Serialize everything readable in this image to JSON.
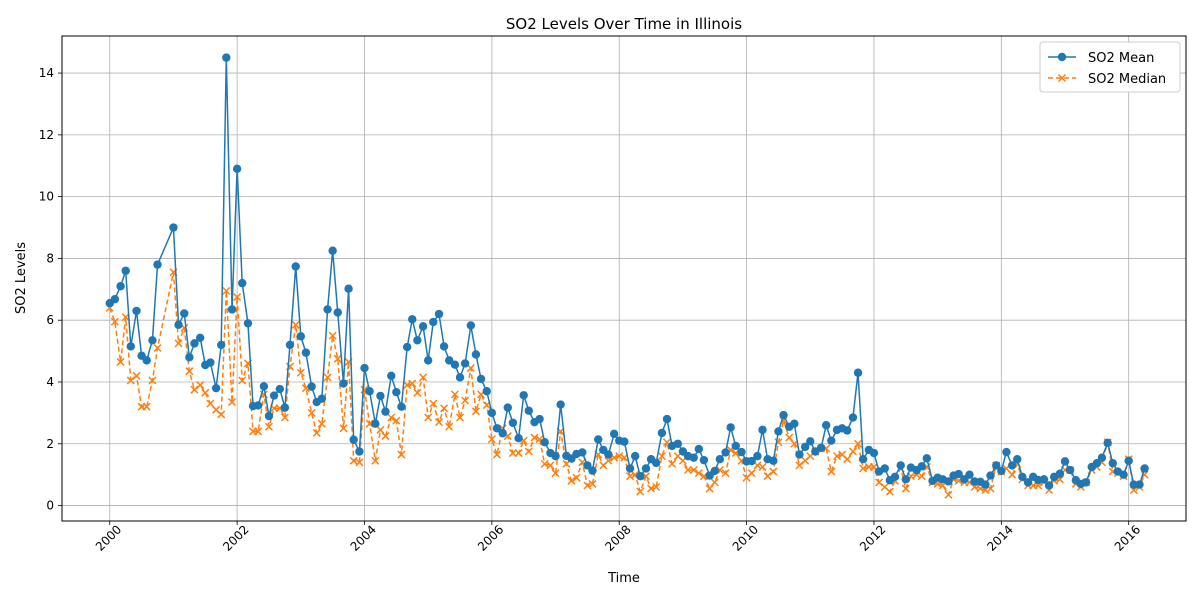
{
  "chart_data": {
    "type": "line",
    "title": "SO2 Levels Over Time in Illinois",
    "xlabel": "Time",
    "ylabel": "SO2 Levels",
    "xlim": [
      1999.25,
      2016.9
    ],
    "ylim": [
      -0.5,
      15.2
    ],
    "xticks": [
      2000,
      2002,
      2004,
      2006,
      2008,
      2010,
      2012,
      2014,
      2016
    ],
    "xtick_labels": [
      "2000",
      "2002",
      "2004",
      "2006",
      "2008",
      "2010",
      "2012",
      "2014",
      "2016"
    ],
    "yticks": [
      0,
      2,
      4,
      6,
      8,
      10,
      12,
      14
    ],
    "ytick_labels": [
      "0",
      "2",
      "4",
      "6",
      "8",
      "10",
      "12",
      "14"
    ],
    "grid": true,
    "legend_position": "top-right",
    "colors": {
      "mean": "#1f77b4",
      "median": "#ff7f0e"
    },
    "x": [
      2000.0,
      2000.08,
      2000.17,
      2000.25,
      2000.33,
      2000.42,
      2000.5,
      2000.58,
      2000.67,
      2000.75,
      2001.0,
      2001.08,
      2001.17,
      2001.25,
      2001.33,
      2001.42,
      2001.5,
      2001.58,
      2001.67,
      2001.75,
      2001.83,
      2001.92,
      2002.0,
      2002.08,
      2002.17,
      2002.25,
      2002.33,
      2002.42,
      2002.5,
      2002.58,
      2002.67,
      2002.75,
      2002.83,
      2002.92,
      2003.0,
      2003.08,
      2003.17,
      2003.25,
      2003.33,
      2003.42,
      2003.5,
      2003.58,
      2003.67,
      2003.75,
      2003.83,
      2003.92,
      2004.0,
      2004.08,
      2004.17,
      2004.25,
      2004.33,
      2004.42,
      2004.5,
      2004.58,
      2004.67,
      2004.75,
      2004.83,
      2004.92,
      2005.0,
      2005.08,
      2005.17,
      2005.25,
      2005.33,
      2005.42,
      2005.5,
      2005.58,
      2005.67,
      2005.75,
      2005.83,
      2005.92,
      2006.0,
      2006.08,
      2006.17,
      2006.25,
      2006.33,
      2006.42,
      2006.5,
      2006.58,
      2006.67,
      2006.75,
      2006.83,
      2006.92,
      2007.0,
      2007.08,
      2007.17,
      2007.25,
      2007.33,
      2007.42,
      2007.5,
      2007.58,
      2007.67,
      2007.75,
      2007.83,
      2007.92,
      2008.0,
      2008.08,
      2008.17,
      2008.25,
      2008.33,
      2008.42,
      2008.5,
      2008.58,
      2008.67,
      2008.75,
      2008.83,
      2008.92,
      2009.0,
      2009.08,
      2009.17,
      2009.25,
      2009.33,
      2009.42,
      2009.5,
      2009.58,
      2009.67,
      2009.75,
      2009.83,
      2009.92,
      2010.0,
      2010.08,
      2010.17,
      2010.25,
      2010.33,
      2010.42,
      2010.5,
      2010.58,
      2010.67,
      2010.75,
      2010.83,
      2010.92,
      2011.0,
      2011.08,
      2011.17,
      2011.25,
      2011.33,
      2011.42,
      2011.5,
      2011.58,
      2011.67,
      2011.75,
      2011.83,
      2011.92,
      2012.0,
      2012.08,
      2012.17,
      2012.25,
      2012.33,
      2012.42,
      2012.5,
      2012.58,
      2012.67,
      2012.75,
      2012.83,
      2012.92,
      2013.0,
      2013.08,
      2013.17,
      2013.25,
      2013.33,
      2013.42,
      2013.5,
      2013.58,
      2013.67,
      2013.75,
      2013.83,
      2013.92,
      2014.0,
      2014.08,
      2014.17,
      2014.25,
      2014.33,
      2014.42,
      2014.5,
      2014.58,
      2014.67,
      2014.75,
      2014.83,
      2014.92,
      2015.0,
      2015.08,
      2015.17,
      2015.25,
      2015.33,
      2015.42,
      2015.5,
      2015.58,
      2015.67,
      2015.75,
      2015.83,
      2015.92,
      2016.0,
      2016.08,
      2016.17,
      2016.25
    ],
    "series": [
      {
        "name": "SO2 Mean",
        "values": [
          6.55,
          6.68,
          7.1,
          7.6,
          5.15,
          6.3,
          4.85,
          4.7,
          5.35,
          7.8,
          9.0,
          5.85,
          6.22,
          4.8,
          5.25,
          5.43,
          4.55,
          4.63,
          3.8,
          5.2,
          14.5,
          6.35,
          10.9,
          7.2,
          5.9,
          3.22,
          3.24,
          3.86,
          2.9,
          3.56,
          3.77,
          3.17,
          5.2,
          7.74,
          5.48,
          4.95,
          3.85,
          3.35,
          3.46,
          6.35,
          8.25,
          6.25,
          3.95,
          7.02,
          2.13,
          1.75,
          4.45,
          3.7,
          2.65,
          3.55,
          3.04,
          4.2,
          3.67,
          3.2,
          5.13,
          6.03,
          5.35,
          5.8,
          4.7,
          5.94,
          6.2,
          5.15,
          4.7,
          4.56,
          4.15,
          4.6,
          5.83,
          4.89,
          4.1,
          3.7,
          3.0,
          2.5,
          2.34,
          3.17,
          2.68,
          2.18,
          3.57,
          3.07,
          2.7,
          2.8,
          2.05,
          1.7,
          1.6,
          3.27,
          1.61,
          1.52,
          1.67,
          1.72,
          1.3,
          1.13,
          2.14,
          1.8,
          1.65,
          2.32,
          2.1,
          2.07,
          1.2,
          1.6,
          0.95,
          1.2,
          1.5,
          1.38,
          2.35,
          2.8,
          1.93,
          2.0,
          1.75,
          1.6,
          1.55,
          1.83,
          1.47,
          0.97,
          1.12,
          1.5,
          1.72,
          2.53,
          1.93,
          1.73,
          1.43,
          1.44,
          1.6,
          2.45,
          1.5,
          1.45,
          2.4,
          2.93,
          2.55,
          2.65,
          1.65,
          1.9,
          2.08,
          1.75,
          1.87,
          2.6,
          2.1,
          2.45,
          2.5,
          2.43,
          2.85,
          4.3,
          1.5,
          1.8,
          1.7,
          1.1,
          1.2,
          0.82,
          0.93,
          1.3,
          0.85,
          1.23,
          1.15,
          1.27,
          1.53,
          0.8,
          0.9,
          0.85,
          0.78,
          0.97,
          1.02,
          0.85,
          1.0,
          0.78,
          0.77,
          0.68,
          0.97,
          1.3,
          1.12,
          1.73,
          1.3,
          1.5,
          0.93,
          0.75,
          0.93,
          0.83,
          0.85,
          0.65,
          0.93,
          1.03,
          1.43,
          1.15,
          0.82,
          0.7,
          0.75,
          1.25,
          1.37,
          1.55,
          2.03,
          1.37,
          1.1,
          1.0,
          1.45,
          0.68,
          0.68,
          1.2
        ]
      },
      {
        "name": "SO2 Median",
        "values": [
          6.4,
          5.95,
          4.65,
          6.1,
          4.05,
          4.2,
          3.2,
          3.2,
          4.05,
          5.1,
          7.55,
          5.25,
          5.75,
          4.35,
          3.75,
          3.9,
          3.65,
          3.3,
          3.1,
          2.95,
          6.95,
          3.35,
          6.75,
          4.05,
          4.6,
          2.4,
          2.4,
          3.6,
          2.55,
          3.15,
          3.15,
          2.85,
          4.5,
          5.85,
          4.3,
          3.8,
          3.0,
          2.35,
          2.65,
          4.15,
          5.5,
          4.75,
          2.5,
          4.65,
          1.45,
          1.4,
          3.75,
          2.65,
          1.45,
          2.45,
          2.25,
          2.85,
          2.75,
          1.65,
          3.9,
          3.95,
          3.65,
          4.15,
          2.85,
          3.3,
          2.7,
          3.15,
          2.55,
          3.6,
          2.85,
          3.4,
          4.45,
          3.05,
          3.6,
          3.25,
          2.15,
          1.65,
          2.5,
          2.25,
          1.7,
          1.7,
          2.1,
          1.75,
          2.2,
          2.15,
          1.35,
          1.3,
          1.05,
          2.4,
          1.35,
          0.8,
          0.9,
          1.4,
          0.65,
          0.7,
          1.65,
          1.3,
          1.45,
          1.55,
          1.6,
          1.55,
          0.95,
          1.0,
          0.45,
          0.95,
          0.55,
          0.6,
          1.6,
          2.05,
          1.35,
          1.6,
          1.45,
          1.15,
          1.15,
          1.05,
          0.95,
          0.55,
          0.75,
          1.15,
          1.05,
          1.8,
          1.7,
          1.45,
          0.9,
          1.05,
          1.3,
          1.25,
          0.95,
          1.1,
          2.05,
          2.75,
          2.2,
          2.0,
          1.3,
          1.45,
          1.6,
          1.75,
          1.85,
          1.85,
          1.1,
          1.6,
          1.65,
          1.5,
          1.75,
          2.0,
          1.2,
          1.25,
          1.25,
          0.75,
          0.6,
          0.45,
          0.8,
          1.2,
          0.55,
          0.95,
          1.0,
          0.95,
          1.25,
          0.75,
          0.7,
          0.65,
          0.35,
          0.85,
          0.8,
          0.75,
          0.75,
          0.6,
          0.55,
          0.5,
          0.55,
          1.3,
          1.1,
          1.2,
          1.0,
          1.35,
          0.85,
          0.65,
          0.65,
          0.65,
          0.75,
          0.5,
          0.8,
          0.85,
          1.15,
          1.15,
          0.7,
          0.6,
          0.75,
          1.15,
          1.25,
          1.4,
          2.05,
          1.1,
          1.05,
          0.95,
          1.5,
          0.5,
          0.6,
          1.0
        ]
      }
    ]
  }
}
